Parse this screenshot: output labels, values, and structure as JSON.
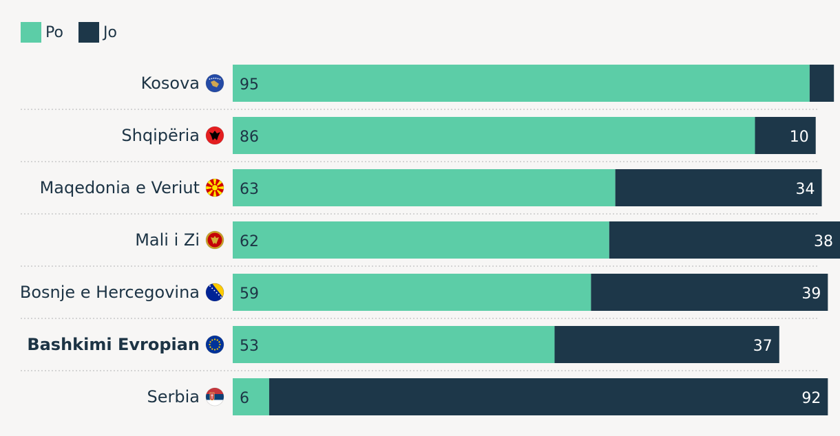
{
  "legend": [
    {
      "label": "Po",
      "color": "#5ccda7"
    },
    {
      "label": "Jo",
      "color": "#1d3749"
    }
  ],
  "chart_data": {
    "type": "bar",
    "orientation": "horizontal",
    "stacked": true,
    "categories": [
      "Kosova",
      "Shqipëria",
      "Maqedonia e Veriut",
      "Mali i Zi",
      "Bosnje e Hercegovina",
      "Bashkimi Evropian",
      "Serbia"
    ],
    "highlighted_category": "Bashkimi Evropian",
    "category_icons": [
      "kosovo-flag-icon",
      "albania-flag-icon",
      "north-macedonia-flag-icon",
      "montenegro-flag-icon",
      "bosnia-flag-icon",
      "eu-flag-icon",
      "serbia-flag-icon"
    ],
    "series": [
      {
        "name": "Po",
        "color": "#5ccda7",
        "values": [
          95,
          86,
          63,
          62,
          59,
          53,
          6
        ],
        "labels": [
          "95",
          "86",
          "63",
          "62",
          "59",
          "53",
          "6"
        ]
      },
      {
        "name": "Jo",
        "color": "#1d3749",
        "values": [
          4,
          10,
          34,
          38,
          39,
          37,
          92
        ],
        "labels": [
          "",
          "10",
          "34",
          "38",
          "39",
          "37",
          "92"
        ]
      }
    ],
    "xlim": [
      0,
      100
    ],
    "legend_position": "top-left",
    "grid": false
  }
}
